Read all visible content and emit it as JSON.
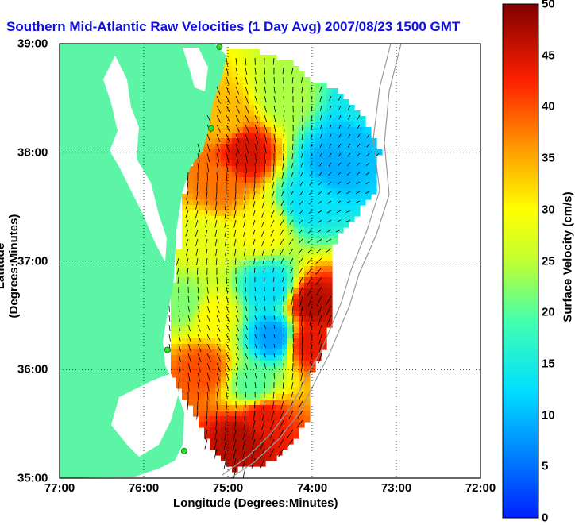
{
  "title": "Southern Mid-Atlantic Raw Velocities (1 Day Avg) 2007/08/23 1500 GMT",
  "axes": {
    "xlabel": "Longitude (Degrees:Minutes)",
    "ylabel": "Latitude (Degrees:Minutes)",
    "xticks": [
      "77:00",
      "76:00",
      "75:00",
      "74:00",
      "73:00",
      "72:00"
    ],
    "yticks": [
      "39:00",
      "38:00",
      "37:00",
      "36:00",
      "35:00"
    ],
    "xlim": [
      -77,
      -72
    ],
    "ylim": [
      35,
      39
    ]
  },
  "colorbar": {
    "label": "Surface Velocity (cm/s)",
    "ticks": [
      "50",
      "45",
      "40",
      "35",
      "30",
      "25",
      "20",
      "15",
      "10",
      "5",
      "0"
    ],
    "range": [
      0,
      50
    ]
  },
  "colors": {
    "land": "#5cf5a5",
    "ocean": "#ffffff",
    "title": "#1010e0",
    "grid": "#000000",
    "bathymetry": "#9a9a9a",
    "station": "#33dd33"
  },
  "chart_data": {
    "type": "heatmap",
    "x_unit": "degrees longitude",
    "y_unit": "degrees latitude",
    "value_unit": "cm/s",
    "coverage_outline": [
      [
        -75.0,
        38.95
      ],
      [
        -74.6,
        38.92
      ],
      [
        -74.3,
        38.85
      ],
      [
        -74.05,
        38.68
      ],
      [
        -73.65,
        38.55
      ],
      [
        -73.35,
        38.28
      ],
      [
        -73.2,
        38.0
      ],
      [
        -73.25,
        37.65
      ],
      [
        -73.55,
        37.35
      ],
      [
        -73.75,
        37.15
      ],
      [
        -73.8,
        36.9
      ],
      [
        -73.75,
        36.55
      ],
      [
        -73.85,
        36.2
      ],
      [
        -74.05,
        35.9
      ],
      [
        -74.05,
        35.55
      ],
      [
        -74.25,
        35.3
      ],
      [
        -74.6,
        35.1
      ],
      [
        -74.95,
        35.08
      ],
      [
        -75.2,
        35.25
      ],
      [
        -75.35,
        35.55
      ],
      [
        -75.55,
        35.75
      ],
      [
        -75.65,
        35.95
      ],
      [
        -75.7,
        36.2
      ],
      [
        -75.7,
        36.6
      ],
      [
        -75.6,
        36.95
      ],
      [
        -75.55,
        37.35
      ],
      [
        -75.5,
        37.75
      ],
      [
        -75.35,
        38.15
      ],
      [
        -75.2,
        38.5
      ],
      [
        -75.08,
        38.8
      ]
    ],
    "speed_regions": [
      {
        "lon": -75.05,
        "lat": 38.3,
        "speed": 34
      },
      {
        "lon": -74.8,
        "lat": 38.0,
        "speed": 45
      },
      {
        "lon": -75.1,
        "lat": 37.7,
        "speed": 38
      },
      {
        "lon": -75.3,
        "lat": 37.2,
        "speed": 28
      },
      {
        "lon": -74.6,
        "lat": 37.3,
        "speed": 30
      },
      {
        "lon": -74.3,
        "lat": 38.5,
        "speed": 24
      },
      {
        "lon": -73.75,
        "lat": 37.9,
        "speed": 9
      },
      {
        "lon": -73.55,
        "lat": 38.1,
        "speed": 10
      },
      {
        "lon": -74.05,
        "lat": 37.55,
        "speed": 13
      },
      {
        "lon": -74.5,
        "lat": 36.75,
        "speed": 13
      },
      {
        "lon": -74.45,
        "lat": 36.3,
        "speed": 8
      },
      {
        "lon": -74.0,
        "lat": 36.6,
        "speed": 47
      },
      {
        "lon": -74.05,
        "lat": 36.25,
        "speed": 44
      },
      {
        "lon": -75.2,
        "lat": 36.5,
        "speed": 30
      },
      {
        "lon": -75.3,
        "lat": 36.0,
        "speed": 40
      },
      {
        "lon": -74.85,
        "lat": 35.35,
        "speed": 47
      },
      {
        "lon": -74.6,
        "lat": 35.55,
        "speed": 44
      },
      {
        "lon": -74.7,
        "lat": 35.85,
        "speed": 20
      },
      {
        "lon": -75.5,
        "lat": 36.6,
        "speed": 22
      },
      {
        "lon": -73.4,
        "lat": 38.4,
        "speed": 14
      }
    ],
    "stations": [
      {
        "lon": -75.1,
        "lat": 38.97
      },
      {
        "lon": -75.2,
        "lat": 38.22
      },
      {
        "lon": -75.72,
        "lat": 36.18
      },
      {
        "lon": -75.52,
        "lat": 35.25
      }
    ]
  }
}
